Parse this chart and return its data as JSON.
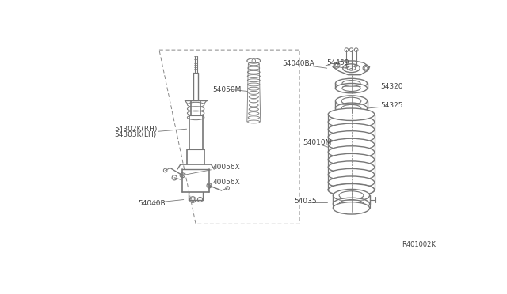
{
  "bg_color": "#ffffff",
  "fig_width": 6.4,
  "fig_height": 3.72,
  "dpi": 100,
  "part_number_ref": "R401002K",
  "labels": {
    "54302K_RH": "54302K(RH)",
    "54303K_LH": "54303K(LH)",
    "54050M": "54050M",
    "40056X_upper": "40056X",
    "40056X_lower": "40056X",
    "54040B": "54040B",
    "54040BA": "54040BA",
    "54459": "54459",
    "54320": "54320",
    "54325": "54325",
    "54010M": "54010M",
    "54035": "54035"
  },
  "line_color": "#777777",
  "text_color": "#444444",
  "dashed_box_color": "#888888",
  "label_font_size": 6.5,
  "ref_font_size": 6.0
}
